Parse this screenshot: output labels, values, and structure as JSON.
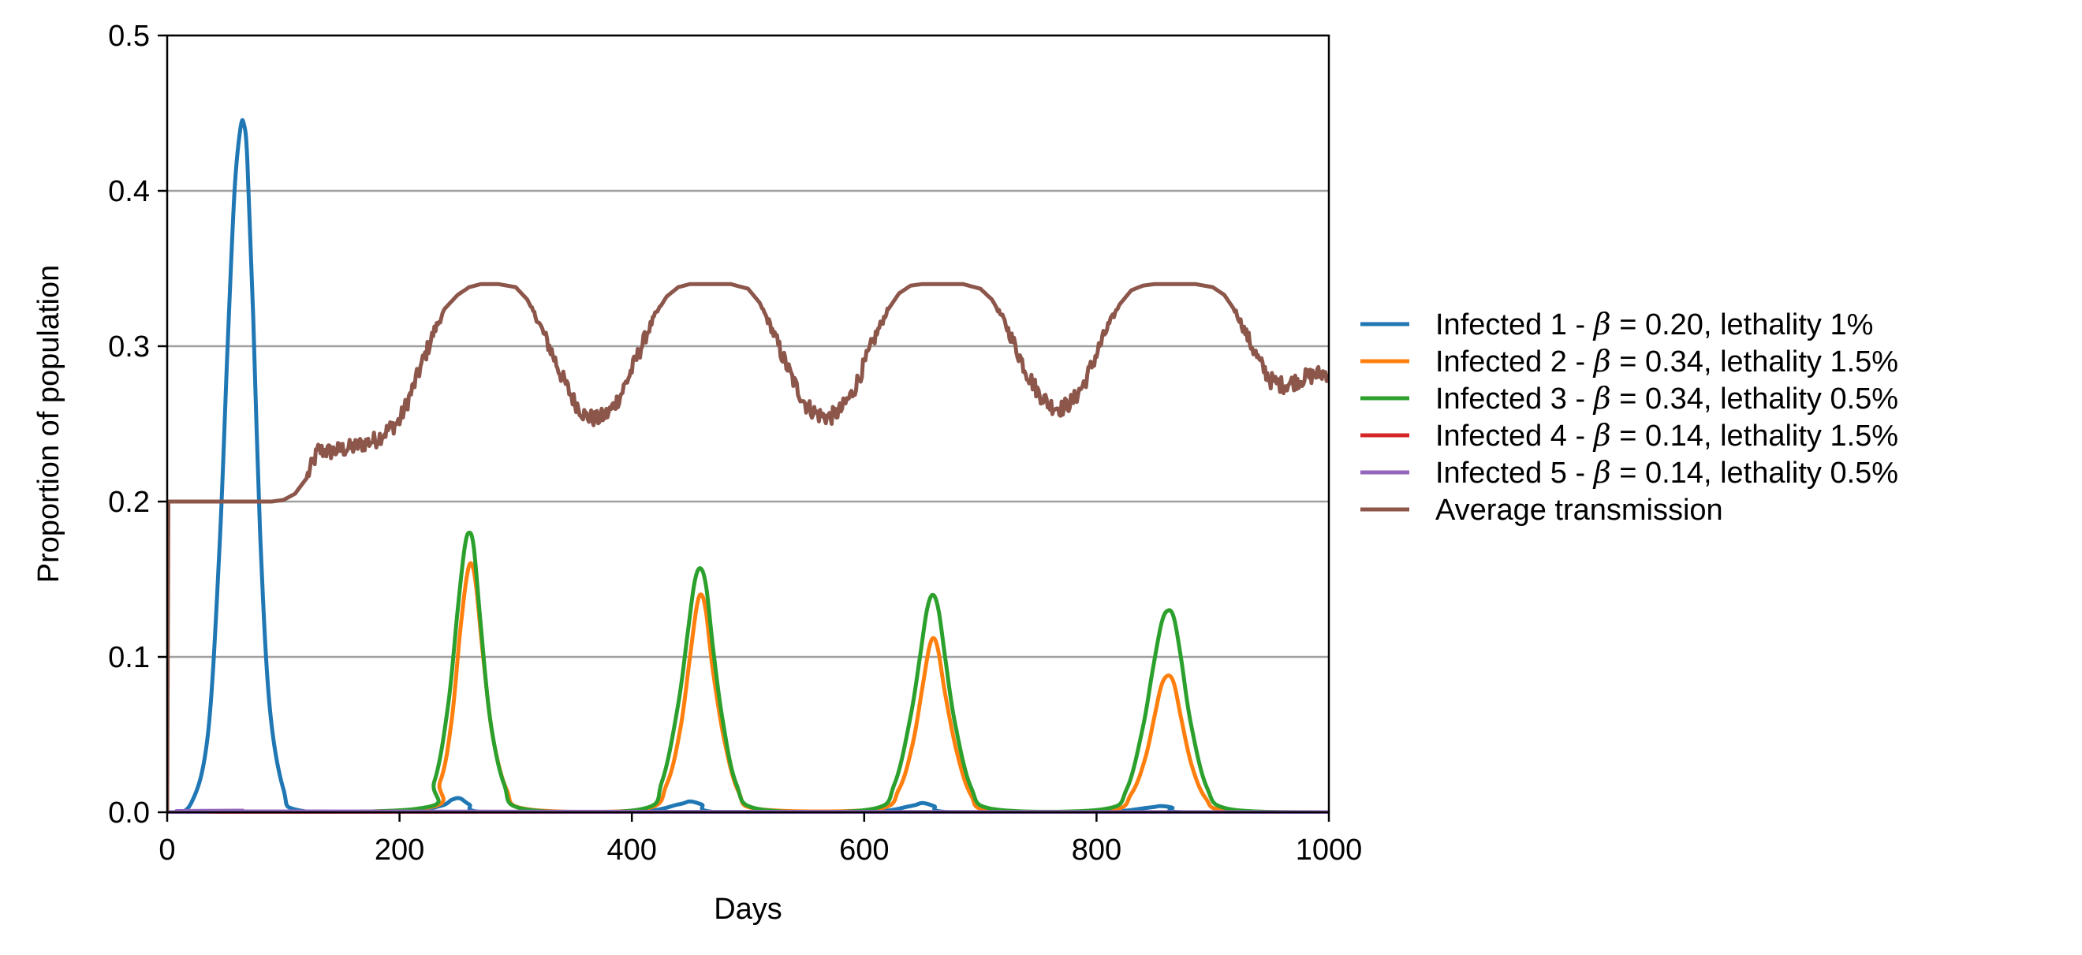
{
  "chart_data": {
    "type": "line",
    "title": "",
    "xlabel": "Days",
    "ylabel": "Proportion of population",
    "xlim": [
      0,
      1000
    ],
    "ylim": [
      0,
      0.5
    ],
    "xticks": [
      "0",
      "200",
      "400",
      "600",
      "800",
      "1000"
    ],
    "xtick_values": [
      0,
      200,
      400,
      600,
      800,
      1000
    ],
    "yticks": [
      "0.0",
      "0.1",
      "0.2",
      "0.3",
      "0.4",
      "0.5"
    ],
    "ytick_values": [
      0.0,
      0.1,
      0.2,
      0.3,
      0.4,
      0.5
    ],
    "grid": "horizontal",
    "legend_position": "right",
    "series": [
      {
        "name": "Infected 1",
        "beta": "0.20",
        "lethality": "lethality 1%",
        "color": "#1f77b4",
        "x": [
          0,
          20,
          35,
          45,
          52,
          58,
          63,
          66,
          69,
          74,
          80,
          88,
          100,
          115,
          200,
          235,
          245,
          252,
          260,
          275,
          400,
          440,
          450,
          460,
          475,
          600,
          640,
          650,
          660,
          675,
          800,
          845,
          855,
          865,
          875,
          1000
        ],
        "y": [
          0,
          0.005,
          0.05,
          0.17,
          0.3,
          0.4,
          0.44,
          0.443,
          0.42,
          0.32,
          0.18,
          0.07,
          0.015,
          0.001,
          0,
          0.004,
          0.008,
          0.009,
          0.005,
          0,
          0,
          0.005,
          0.007,
          0.005,
          0,
          0,
          0.004,
          0.006,
          0.004,
          0,
          0,
          0.003,
          0.004,
          0.003,
          0,
          0
        ]
      },
      {
        "name": "Infected 2",
        "beta": "0.34",
        "lethality": "lethality 1.5%",
        "color": "#ff7f0e",
        "x": [
          0,
          215,
          235,
          245,
          252,
          258,
          262,
          266,
          272,
          280,
          292,
          310,
          410,
          430,
          442,
          450,
          456,
          460,
          464,
          470,
          480,
          492,
          510,
          610,
          630,
          642,
          650,
          656,
          660,
          664,
          670,
          680,
          692,
          710,
          810,
          830,
          842,
          850,
          856,
          862,
          867,
          873,
          882,
          894,
          912,
          1000
        ],
        "y": [
          0,
          0.002,
          0.02,
          0.06,
          0.115,
          0.152,
          0.16,
          0.145,
          0.1,
          0.05,
          0.015,
          0.002,
          0.002,
          0.018,
          0.055,
          0.1,
          0.133,
          0.14,
          0.128,
          0.09,
          0.045,
          0.013,
          0.002,
          0.002,
          0.015,
          0.045,
          0.08,
          0.106,
          0.112,
          0.103,
          0.075,
          0.038,
          0.011,
          0.001,
          0.001,
          0.012,
          0.035,
          0.062,
          0.082,
          0.088,
          0.082,
          0.06,
          0.03,
          0.009,
          0.001,
          0
        ]
      },
      {
        "name": "Infected 3",
        "beta": "0.34",
        "lethality": "lethality 0.5%",
        "color": "#2ca02c",
        "x": [
          0,
          212,
          230,
          242,
          250,
          256,
          260,
          264,
          270,
          278,
          290,
          308,
          408,
          426,
          440,
          448,
          454,
          459,
          464,
          470,
          478,
          490,
          510,
          606,
          626,
          640,
          648,
          654,
          659,
          664,
          670,
          678,
          692,
          712,
          806,
          826,
          840,
          848,
          856,
          862,
          867,
          873,
          881,
          895,
          915,
          1000
        ],
        "y": [
          0,
          0.002,
          0.02,
          0.07,
          0.13,
          0.17,
          0.18,
          0.17,
          0.12,
          0.06,
          0.018,
          0.002,
          0.002,
          0.02,
          0.07,
          0.115,
          0.148,
          0.157,
          0.145,
          0.105,
          0.06,
          0.018,
          0.002,
          0.002,
          0.018,
          0.062,
          0.1,
          0.13,
          0.14,
          0.13,
          0.098,
          0.058,
          0.016,
          0.002,
          0.002,
          0.015,
          0.055,
          0.09,
          0.122,
          0.13,
          0.124,
          0.098,
          0.058,
          0.016,
          0.002,
          0
        ]
      },
      {
        "name": "Infected 4",
        "beta": "0.14",
        "lethality": "lethality 1.5%",
        "color": "#d62728",
        "x": [
          0,
          1000
        ],
        "y": [
          0,
          0
        ]
      },
      {
        "name": "Infected 5",
        "beta": "0.14",
        "lethality": "lethality 0.5%",
        "color": "#9467bd",
        "x": [
          0,
          50,
          65,
          80,
          1000
        ],
        "y": [
          0,
          0.0005,
          0.001,
          0.0005,
          0
        ]
      },
      {
        "name": "Average transmission",
        "color": "#8c564b",
        "noisy": true,
        "x": [
          0,
          1,
          2,
          50,
          90,
          100,
          110,
          120,
          130,
          140,
          160,
          180,
          200,
          210,
          220,
          230,
          240,
          250,
          260,
          270,
          285,
          300,
          310,
          320,
          330,
          340,
          350,
          360,
          370,
          380,
          390,
          400,
          410,
          420,
          430,
          440,
          450,
          460,
          470,
          485,
          500,
          510,
          520,
          530,
          540,
          550,
          560,
          570,
          580,
          590,
          600,
          610,
          620,
          630,
          640,
          650,
          660,
          670,
          685,
          700,
          710,
          720,
          730,
          740,
          750,
          760,
          770,
          780,
          790,
          800,
          810,
          820,
          830,
          840,
          850,
          860,
          870,
          885,
          900,
          910,
          920,
          930,
          940,
          950,
          960,
          970,
          980,
          990,
          1000
        ],
        "y": [
          0,
          0.2,
          0.2,
          0.2,
          0.2,
          0.201,
          0.205,
          0.215,
          0.233,
          0.232,
          0.235,
          0.24,
          0.252,
          0.27,
          0.29,
          0.31,
          0.325,
          0.333,
          0.338,
          0.34,
          0.34,
          0.338,
          0.33,
          0.315,
          0.298,
          0.28,
          0.265,
          0.255,
          0.253,
          0.257,
          0.268,
          0.285,
          0.303,
          0.32,
          0.332,
          0.338,
          0.34,
          0.34,
          0.34,
          0.34,
          0.337,
          0.328,
          0.312,
          0.293,
          0.276,
          0.262,
          0.256,
          0.254,
          0.259,
          0.27,
          0.288,
          0.307,
          0.323,
          0.334,
          0.339,
          0.34,
          0.34,
          0.34,
          0.34,
          0.337,
          0.33,
          0.317,
          0.3,
          0.283,
          0.27,
          0.262,
          0.26,
          0.265,
          0.277,
          0.295,
          0.313,
          0.327,
          0.336,
          0.339,
          0.34,
          0.34,
          0.34,
          0.34,
          0.338,
          0.333,
          0.322,
          0.306,
          0.29,
          0.278,
          0.275,
          0.277,
          0.28,
          0.282,
          0.283
        ]
      }
    ]
  }
}
